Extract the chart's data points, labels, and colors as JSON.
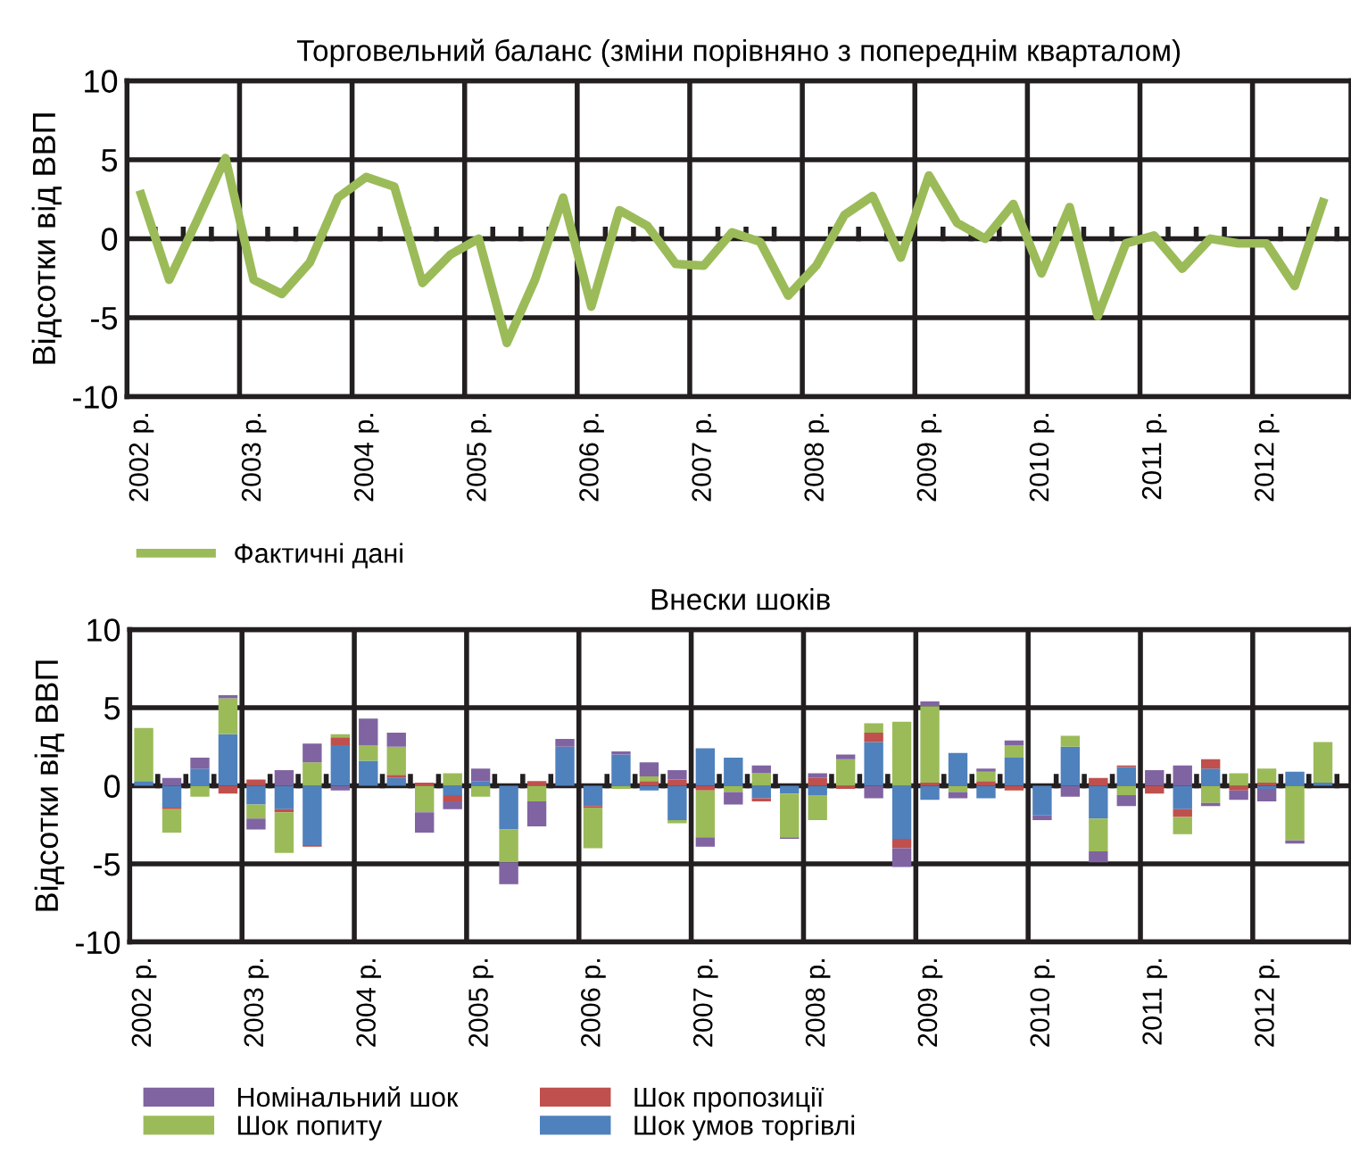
{
  "chart_data": [
    {
      "type": "line",
      "title": "Торговельний баланс (зміни порівняно з попереднім кварталом)",
      "ylabel": "Відсотки від ВВП",
      "categories": [
        "2002 р.",
        null,
        null,
        null,
        "2003 р.",
        null,
        null,
        null,
        "2004 р.",
        null,
        null,
        null,
        "2005 р.",
        null,
        null,
        null,
        "2006 р.",
        null,
        null,
        null,
        "2007 р.",
        null,
        null,
        null,
        "2008 р.",
        null,
        null,
        null,
        "2009 р.",
        null,
        null,
        null,
        "2010 р.",
        null,
        null,
        null,
        "2011 р.",
        null,
        null,
        null,
        "2012 р.",
        null,
        null
      ],
      "series": [
        {
          "name": "Фактичні дані",
          "color": "#9bbb59",
          "values": [
            2.8,
            -2.6,
            1.2,
            5.1,
            -2.6,
            -3.5,
            -1.5,
            2.6,
            3.9,
            3.3,
            -2.8,
            -1.0,
            0.0,
            -6.6,
            -2.6,
            2.6,
            -4.3,
            1.8,
            0.8,
            -1.6,
            -1.7,
            0.4,
            -0.2,
            -3.6,
            -1.7,
            1.5,
            2.7,
            -1.2,
            4.0,
            1.0,
            0.0,
            2.2,
            -2.2,
            2.0,
            -4.9,
            -0.3,
            0.2,
            -1.9,
            0.0,
            -0.3,
            -0.3,
            -3.0,
            2.3
          ]
        }
      ],
      "ylim": [
        -10,
        10
      ],
      "yticks": [
        -10,
        -5,
        0,
        5,
        10
      ],
      "grid": true,
      "legend": "bottom left",
      "marker": "none",
      "line_style": "solid"
    },
    {
      "type": "bar",
      "title": "Внески шоків",
      "ylabel": "Відсотки від ВВП",
      "stacked": true,
      "categories": [
        "2002 р.",
        null,
        null,
        null,
        "2003 р.",
        null,
        null,
        null,
        "2004 р.",
        null,
        null,
        null,
        "2005 р.",
        null,
        null,
        null,
        "2006 р.",
        null,
        null,
        null,
        "2007 р.",
        null,
        null,
        null,
        "2008 р.",
        null,
        null,
        null,
        "2009 р.",
        null,
        null,
        null,
        "2010 р.",
        null,
        null,
        null,
        "2011 р.",
        null,
        null,
        null,
        "2012 р.",
        null,
        null
      ],
      "series": [
        {
          "name": "Шок умов торгівлі",
          "color": "#4f81bd",
          "values": [
            0.3,
            -1.4,
            1.1,
            3.3,
            -1.2,
            -1.5,
            -3.8,
            2.6,
            1.6,
            0.5,
            0,
            -0.6,
            0.3,
            -2.8,
            0,
            2.5,
            -1.3,
            2.0,
            -0.3,
            -2.2,
            2.4,
            1.8,
            -0.8,
            -0.5,
            -0.6,
            0,
            2.8,
            -3.4,
            -0.9,
            2.1,
            -0.8,
            1.8,
            -1.9,
            2.5,
            -2.1,
            1.2,
            0,
            -1.5,
            1.1,
            0,
            -0.2,
            0.9,
            0.2
          ]
        },
        {
          "name": "Шок пропозиції",
          "color": "#c0504d",
          "values": [
            0,
            -0.1,
            0,
            -0.5,
            0.4,
            -0.2,
            -0.1,
            0.5,
            0,
            0.2,
            0.2,
            -0.4,
            0,
            0,
            0.3,
            0,
            -0.1,
            0,
            0.3,
            0.4,
            -0.3,
            0,
            -0.2,
            0,
            0.5,
            -0.2,
            0.6,
            -0.6,
            0.2,
            0,
            0.3,
            -0.3,
            0,
            0,
            0.5,
            0.1,
            -0.5,
            -0.5,
            0.6,
            -0.3,
            0.2,
            0,
            0
          ]
        },
        {
          "name": "Шок попиту",
          "color": "#9bbb59",
          "values": [
            3.4,
            -1.5,
            -0.7,
            2.3,
            -0.9,
            -2.6,
            1.5,
            0.2,
            1.0,
            1.8,
            -1.7,
            0.8,
            -0.7,
            -2.1,
            -1.0,
            0,
            -2.6,
            -0.2,
            0.3,
            -0.2,
            -3.0,
            -0.4,
            0.8,
            -2.8,
            -1.6,
            1.7,
            0.6,
            4.1,
            4.9,
            -0.4,
            0.6,
            0.8,
            0,
            0.7,
            -2.1,
            -0.6,
            0,
            -1.1,
            -1.1,
            0.8,
            0.9,
            -3.5,
            2.6
          ]
        },
        {
          "name": "Номінальний шок",
          "color": "#8064a2",
          "values": [
            0,
            0.5,
            0.7,
            0.2,
            -0.7,
            1.0,
            1.2,
            -0.3,
            1.7,
            0.9,
            -1.3,
            -0.5,
            0.8,
            -1.4,
            -1.6,
            0.5,
            0,
            0.2,
            0.9,
            0.6,
            -0.6,
            -0.8,
            0.5,
            -0.1,
            0.3,
            0.3,
            -0.8,
            -1.2,
            0.3,
            -0.4,
            0.2,
            0.3,
            -0.3,
            -0.7,
            -0.7,
            -0.7,
            1.0,
            1.3,
            -0.2,
            -0.6,
            -0.8,
            -0.2,
            0
          ]
        }
      ],
      "ylim": [
        -10,
        10
      ],
      "yticks": [
        -10,
        -5,
        0,
        5,
        10
      ],
      "grid": true,
      "legend": "bottom left"
    }
  ]
}
